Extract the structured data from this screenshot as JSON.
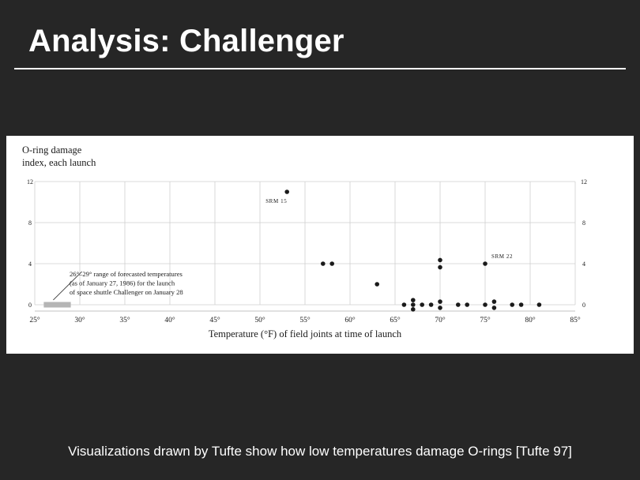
{
  "slide": {
    "title": "Analysis: Challenger",
    "caption": "Visualizations drawn by Tufte show how low temperatures damage O-rings [Tufte 97]"
  },
  "colors": {
    "background": "#262626",
    "panel": "#ffffff",
    "ink": "#1a1a1a",
    "gridline": "#cfcfcf",
    "forecast_band": "#b5b5b5"
  },
  "chart_data": {
    "type": "scatter",
    "ylabel_lines": [
      "O-ring damage",
      "index, each launch"
    ],
    "xlabel": "Temperature (°F) of field joints at time of launch",
    "xlim": [
      25,
      85
    ],
    "ylim": [
      0,
      12
    ],
    "x_ticks": [
      25,
      30,
      35,
      40,
      45,
      50,
      55,
      60,
      65,
      70,
      75,
      80,
      85
    ],
    "x_tick_labels": [
      "25°",
      "30°",
      "35°",
      "40°",
      "45°",
      "50°",
      "55°",
      "60°",
      "65°",
      "70°",
      "75°",
      "80°",
      "85°"
    ],
    "y_ticks": [
      0,
      4,
      8,
      12
    ],
    "y_tick_labels": [
      "0",
      "4",
      "8",
      "12"
    ],
    "grid": true,
    "points": [
      {
        "x": 53,
        "y": 11
      },
      {
        "x": 57,
        "y": 4
      },
      {
        "x": 58,
        "y": 4
      },
      {
        "x": 63,
        "y": 2
      },
      {
        "x": 70,
        "y": 4.35
      },
      {
        "x": 70,
        "y": 3.65
      },
      {
        "x": 75,
        "y": 4
      },
      {
        "x": 66,
        "y": 0
      },
      {
        "x": 67,
        "y": 0.45
      },
      {
        "x": 67,
        "y": 0
      },
      {
        "x": 67,
        "y": -0.45
      },
      {
        "x": 68,
        "y": 0
      },
      {
        "x": 69,
        "y": 0
      },
      {
        "x": 70,
        "y": 0.3
      },
      {
        "x": 70,
        "y": -0.3
      },
      {
        "x": 72,
        "y": 0
      },
      {
        "x": 73,
        "y": 0
      },
      {
        "x": 75,
        "y": 0
      },
      {
        "x": 76,
        "y": 0.3
      },
      {
        "x": 76,
        "y": -0.3
      },
      {
        "x": 78,
        "y": 0
      },
      {
        "x": 79,
        "y": 0
      },
      {
        "x": 81,
        "y": 0
      }
    ],
    "annotations": [
      {
        "text": "SRM 15",
        "x": 53,
        "y": 11
      },
      {
        "text": "SRM 22",
        "x": 75,
        "y": 4
      }
    ],
    "forecast_range": {
      "x": [
        26,
        29
      ],
      "lines": [
        "26°–29° range of forecasted temperatures",
        "(as of January 27, 1986) for the launch",
        "of space shuttle Challenger on January 28"
      ]
    }
  }
}
